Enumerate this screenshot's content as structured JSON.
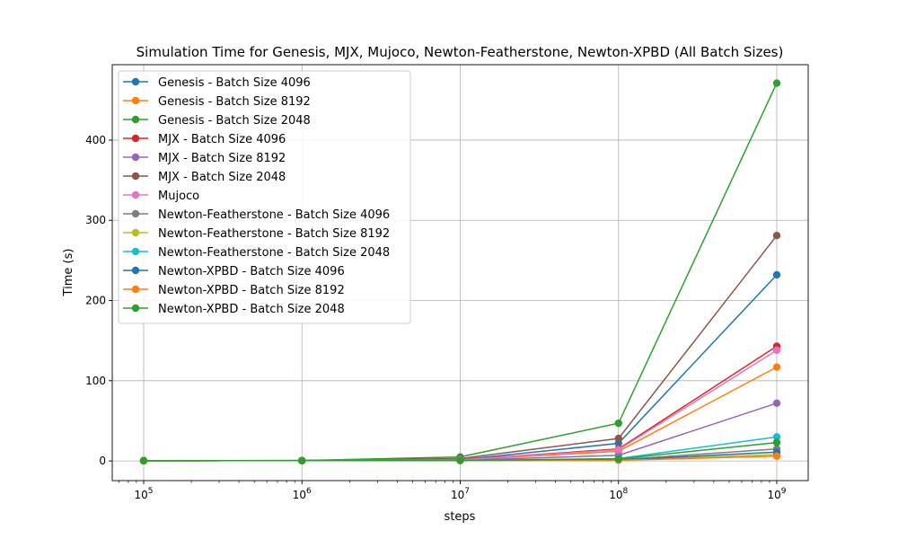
{
  "chart_data": {
    "type": "line",
    "title": "Simulation Time for Genesis, MJX, Mujoco, Newton-Featherstone, Newton-XPBD (All Batch Sizes)",
    "xlabel": "steps",
    "ylabel": "Time (s)",
    "xscale": "log",
    "x": [
      100000,
      1000000,
      10000000,
      100000000,
      1000000000
    ],
    "x_tick_labels": [
      {
        "base": "10",
        "exp": "5"
      },
      {
        "base": "10",
        "exp": "6"
      },
      {
        "base": "10",
        "exp": "7"
      },
      {
        "base": "10",
        "exp": "8"
      },
      {
        "base": "10",
        "exp": "9"
      }
    ],
    "y_ticks": [
      0,
      100,
      200,
      300,
      400
    ],
    "ylim": [
      -24.5,
      494
    ],
    "grid": true,
    "legend_position": "upper-left",
    "series": [
      {
        "name": "Genesis - Batch Size 4096",
        "color": "#1f77b4",
        "values": [
          0.3,
          0.4,
          1.5,
          22,
          232
        ]
      },
      {
        "name": "Genesis - Batch Size 8192",
        "color": "#ff7f0e",
        "values": [
          0.3,
          0.4,
          1.2,
          12,
          117
        ]
      },
      {
        "name": "Genesis - Batch Size 2048",
        "color": "#2ca02c",
        "values": [
          0.3,
          0.5,
          5,
          47,
          471
        ]
      },
      {
        "name": "MJX - Batch Size 4096",
        "color": "#d62728",
        "values": [
          0.3,
          0.4,
          1.5,
          15,
          143
        ]
      },
      {
        "name": "MJX - Batch Size 8192",
        "color": "#9467bd",
        "values": [
          0.3,
          0.4,
          0.9,
          7,
          72
        ]
      },
      {
        "name": "MJX - Batch Size 2048",
        "color": "#8c564b",
        "values": [
          0.3,
          0.5,
          3,
          28,
          281
        ]
      },
      {
        "name": "Mujoco",
        "color": "#e377c2",
        "values": [
          0.3,
          0.4,
          1.4,
          14,
          138
        ]
      },
      {
        "name": "Newton-Featherstone - Batch Size 4096",
        "color": "#7f7f7f",
        "values": [
          0.3,
          0.4,
          0.5,
          1.5,
          15
        ]
      },
      {
        "name": "Newton-Featherstone - Batch Size 8192",
        "color": "#bcbd22",
        "values": [
          0.3,
          0.4,
          0.5,
          1,
          8
        ]
      },
      {
        "name": "Newton-Featherstone - Batch Size 2048",
        "color": "#17becf",
        "values": [
          0.3,
          0.4,
          0.6,
          3,
          30
        ]
      },
      {
        "name": "Newton-XPBD - Batch Size 4096",
        "color": "#1f77b4",
        "values": [
          0.3,
          0.4,
          0.5,
          1.2,
          11
        ]
      },
      {
        "name": "Newton-XPBD - Batch Size 8192",
        "color": "#ff7f0e",
        "values": [
          0.3,
          0.4,
          0.5,
          0.8,
          6
        ]
      },
      {
        "name": "Newton-XPBD - Batch Size 2048",
        "color": "#2ca02c",
        "values": [
          0.3,
          0.4,
          0.6,
          2.5,
          23
        ]
      }
    ]
  }
}
